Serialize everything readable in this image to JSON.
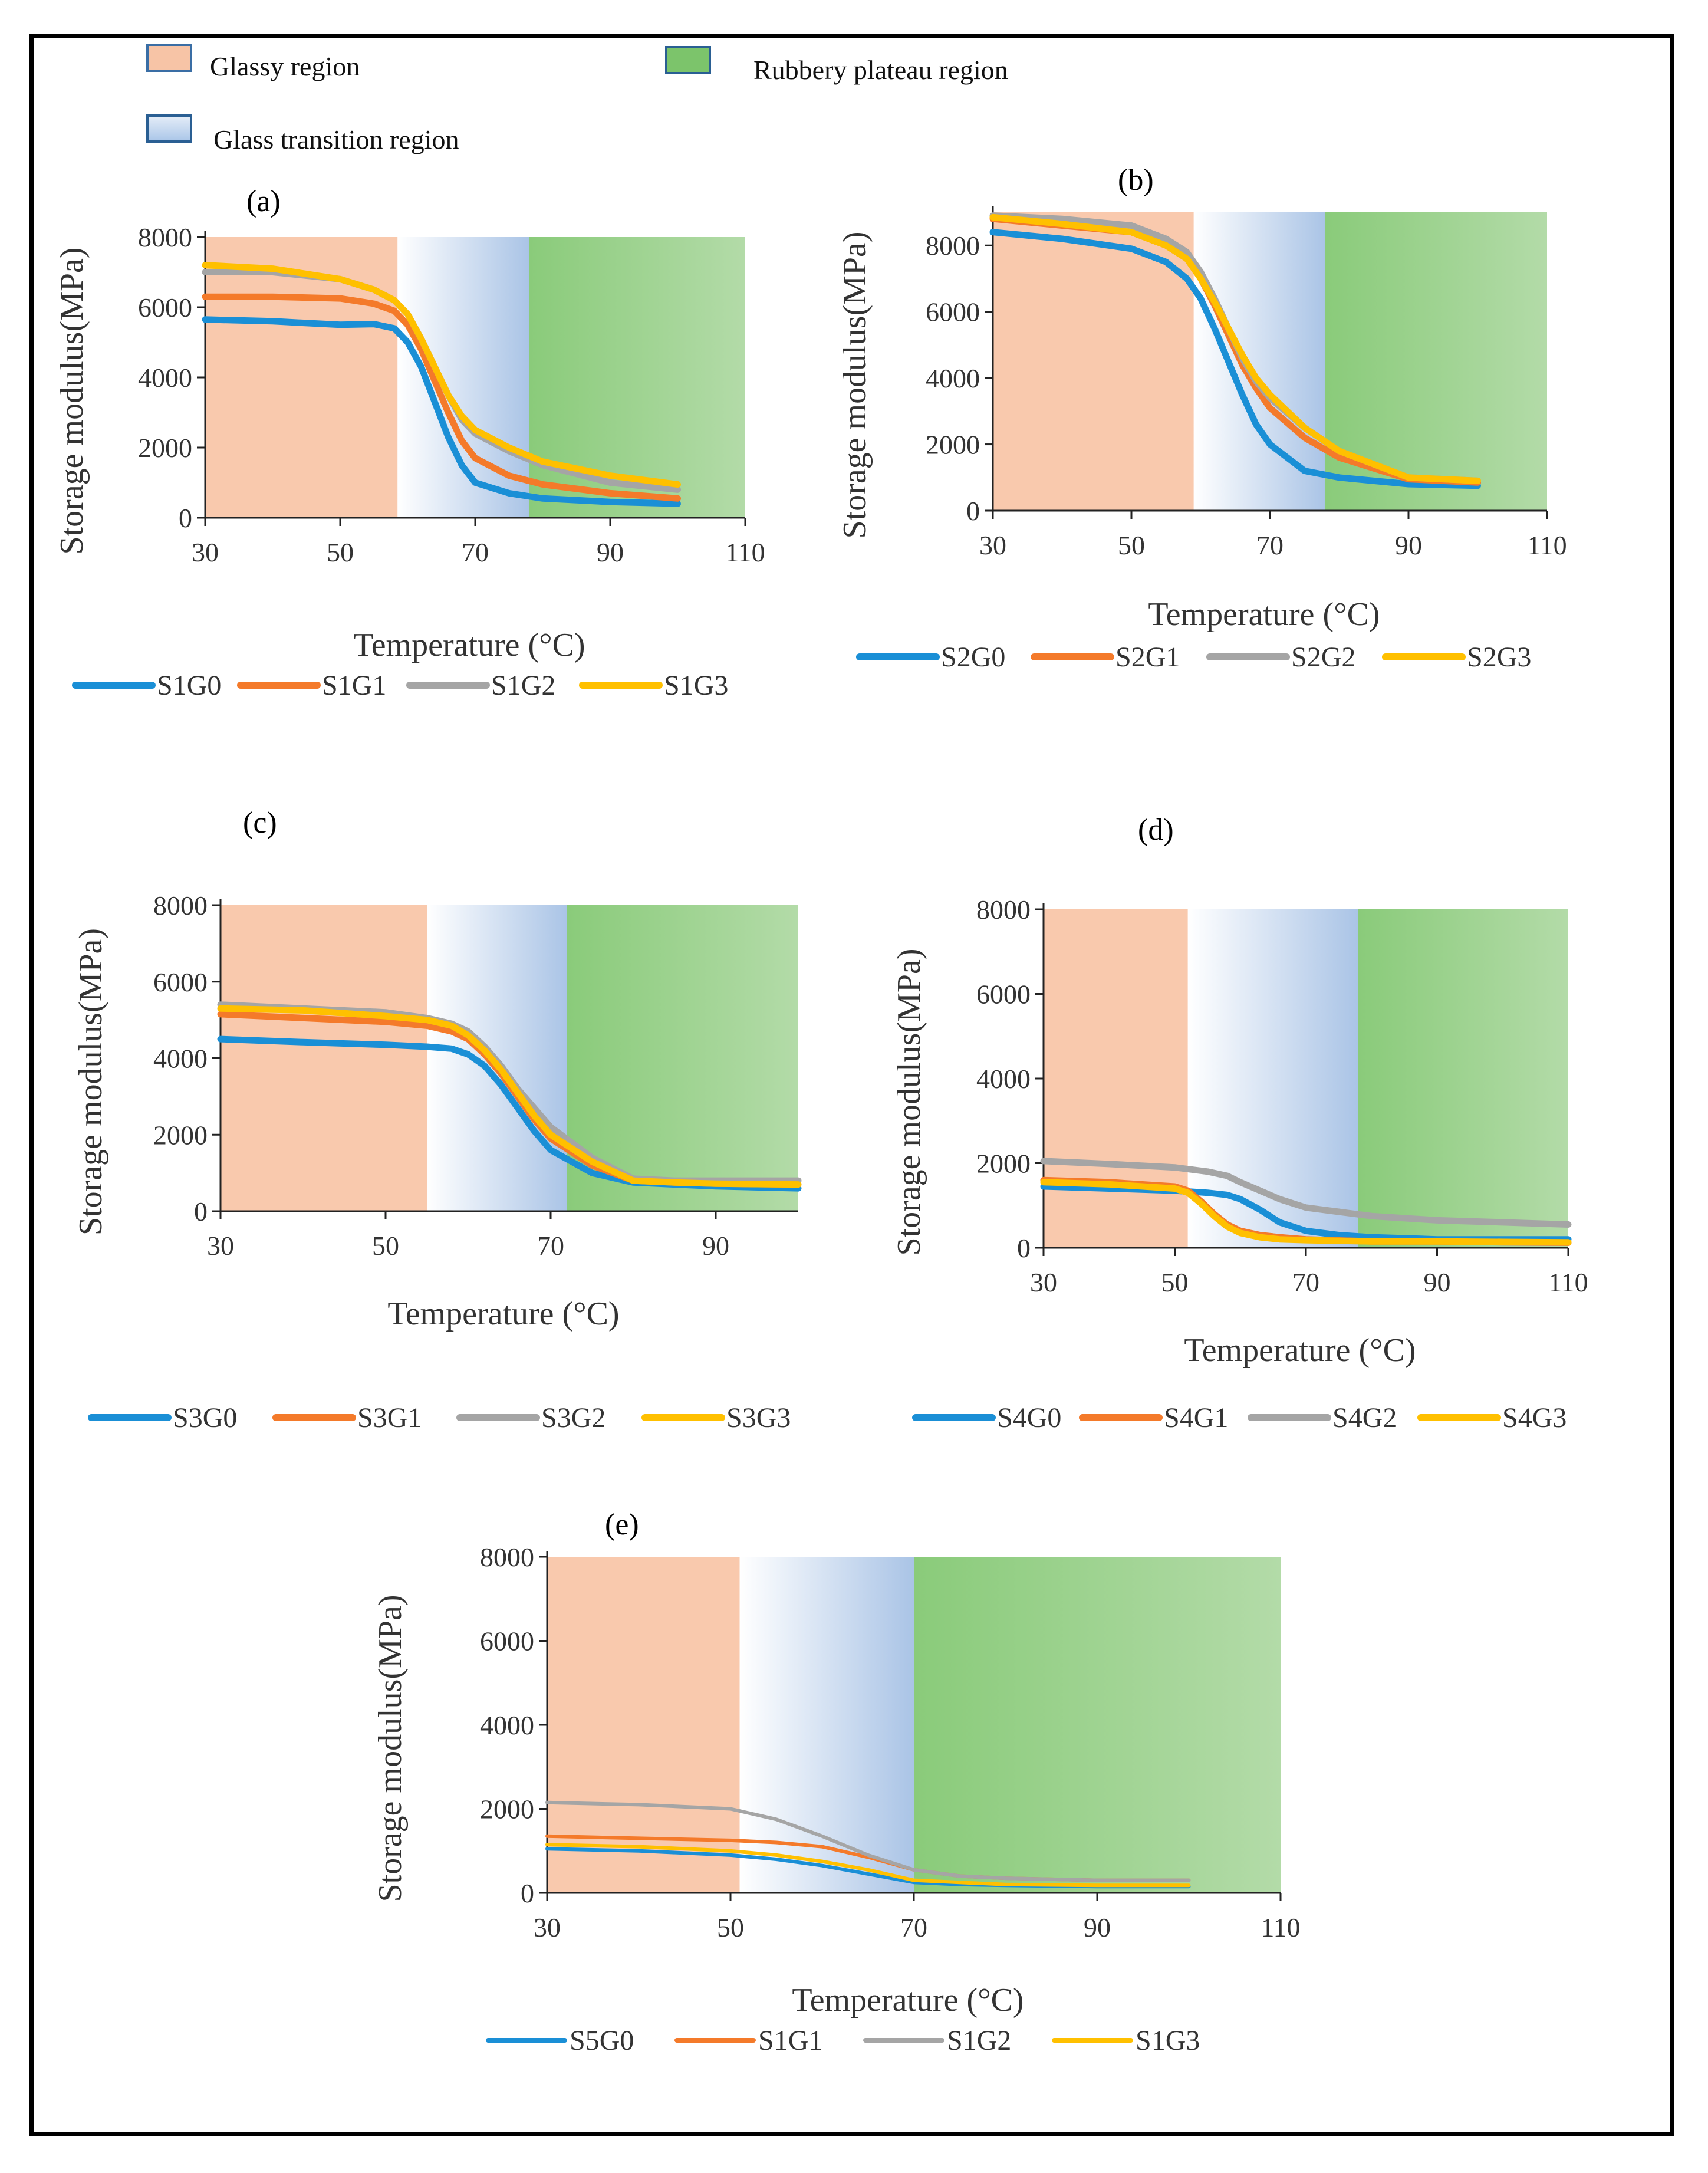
{
  "legend_regions": [
    {
      "key": "glassy",
      "label": "Glassy region",
      "color": "#f7c4a6"
    },
    {
      "key": "rubbery",
      "label": "Rubbery plateau region",
      "color": "#7cc46b"
    },
    {
      "key": "transition",
      "label": "Glass transition region",
      "color": "#b7cfea"
    }
  ],
  "colors": {
    "G0": "#1a8fd6",
    "G1": "#f47a2a",
    "G2": "#a5a5a5",
    "G3": "#ffc000"
  },
  "chart_data": [
    {
      "type": "line",
      "panel": "(a)",
      "xlabel": "Temperature (°C)",
      "ylabel": "Storage modulus(MPa)",
      "xlim": [
        30,
        110
      ],
      "ylim": [
        0,
        8000
      ],
      "xticks": [
        30,
        50,
        70,
        90,
        110
      ],
      "yticks": [
        0,
        2000,
        4000,
        6000,
        8000
      ],
      "regions": {
        "glassy": [
          30,
          58.5
        ],
        "transition": [
          58.5,
          78
        ],
        "rubbery": [
          78,
          110
        ]
      },
      "series": [
        {
          "name": "S1G0",
          "color": "#1a8fd6",
          "x": [
            30,
            40,
            50,
            55,
            58,
            60,
            62,
            64,
            66,
            68,
            70,
            75,
            80,
            90,
            100
          ],
          "values": [
            5650,
            5600,
            5500,
            5520,
            5400,
            5000,
            4300,
            3300,
            2300,
            1500,
            1000,
            700,
            550,
            450,
            400
          ]
        },
        {
          "name": "S1G1",
          "color": "#f47a2a",
          "x": [
            30,
            40,
            50,
            55,
            58,
            60,
            62,
            64,
            66,
            68,
            70,
            75,
            80,
            90,
            100
          ],
          "values": [
            6300,
            6300,
            6250,
            6100,
            5900,
            5500,
            4800,
            3900,
            3000,
            2200,
            1700,
            1200,
            950,
            700,
            550
          ]
        },
        {
          "name": "S1G2",
          "color": "#a5a5a5",
          "x": [
            30,
            40,
            50,
            55,
            58,
            60,
            62,
            64,
            66,
            68,
            70,
            75,
            80,
            90,
            100
          ],
          "values": [
            7000,
            7000,
            6800,
            6500,
            6200,
            5800,
            5100,
            4300,
            3500,
            2800,
            2400,
            1900,
            1500,
            1000,
            800
          ]
        },
        {
          "name": "S1G3",
          "color": "#ffc000",
          "x": [
            30,
            40,
            50,
            55,
            58,
            60,
            62,
            64,
            66,
            68,
            70,
            75,
            80,
            90,
            100
          ],
          "values": [
            7200,
            7100,
            6800,
            6500,
            6200,
            5800,
            5100,
            4300,
            3500,
            2900,
            2500,
            2000,
            1600,
            1200,
            950
          ]
        }
      ]
    },
    {
      "type": "line",
      "panel": "(b)",
      "xlabel": "Temperature (°C)",
      "ylabel": "Storage modulus(MPa)",
      "xlim": [
        30,
        110
      ],
      "ylim": [
        0,
        9000
      ],
      "xticks": [
        30,
        50,
        70,
        90,
        110
      ],
      "yticks": [
        0,
        2000,
        4000,
        6000,
        8000
      ],
      "regions": {
        "glassy": [
          30,
          59
        ],
        "transition": [
          59,
          78
        ],
        "rubbery": [
          78,
          110
        ]
      },
      "series": [
        {
          "name": "S2G0",
          "color": "#1a8fd6",
          "x": [
            30,
            40,
            50,
            55,
            58,
            60,
            62,
            64,
            66,
            68,
            70,
            75,
            80,
            90,
            100
          ],
          "values": [
            8400,
            8200,
            7900,
            7500,
            7000,
            6400,
            5500,
            4500,
            3500,
            2600,
            2000,
            1200,
            1000,
            800,
            750
          ]
        },
        {
          "name": "S2G1",
          "color": "#f47a2a",
          "x": [
            30,
            40,
            50,
            55,
            58,
            60,
            62,
            64,
            66,
            68,
            70,
            75,
            80,
            90,
            100
          ],
          "values": [
            8800,
            8600,
            8400,
            8000,
            7600,
            7000,
            6200,
            5300,
            4400,
            3700,
            3100,
            2200,
            1600,
            950,
            850
          ]
        },
        {
          "name": "S2G2",
          "color": "#a5a5a5",
          "x": [
            30,
            40,
            50,
            55,
            58,
            60,
            62,
            64,
            66,
            68,
            70,
            75,
            80,
            90,
            100
          ],
          "values": [
            8900,
            8800,
            8600,
            8200,
            7800,
            7200,
            6400,
            5500,
            4600,
            3900,
            3400,
            2500,
            1800,
            1000,
            900
          ]
        },
        {
          "name": "S2G3",
          "color": "#ffc000",
          "x": [
            30,
            40,
            50,
            55,
            58,
            60,
            62,
            64,
            66,
            68,
            70,
            75,
            80,
            90,
            100
          ],
          "values": [
            8850,
            8650,
            8400,
            8000,
            7600,
            7000,
            6300,
            5500,
            4700,
            4000,
            3500,
            2500,
            1800,
            1000,
            900
          ]
        }
      ]
    },
    {
      "type": "line",
      "panel": "(c)",
      "xlabel": "Temperature (°C)",
      "ylabel": "Storage modulus(MPa)",
      "xlim": [
        30,
        100
      ],
      "ylim": [
        0,
        8000
      ],
      "xticks": [
        30,
        50,
        70,
        90
      ],
      "yticks": [
        0,
        2000,
        4000,
        6000,
        8000
      ],
      "regions": {
        "glassy": [
          30,
          55
        ],
        "transition": [
          55,
          72
        ],
        "rubbery": [
          72,
          100
        ]
      },
      "series": [
        {
          "name": "S3G0",
          "color": "#1a8fd6",
          "x": [
            30,
            40,
            50,
            55,
            58,
            60,
            62,
            64,
            66,
            68,
            70,
            75,
            80,
            85,
            90,
            100
          ],
          "values": [
            4500,
            4420,
            4350,
            4300,
            4250,
            4100,
            3800,
            3300,
            2700,
            2100,
            1600,
            1000,
            750,
            700,
            650,
            600
          ]
        },
        {
          "name": "S3G1",
          "color": "#f47a2a",
          "x": [
            30,
            40,
            50,
            55,
            58,
            60,
            62,
            64,
            66,
            68,
            70,
            75,
            80,
            85,
            90,
            100
          ],
          "values": [
            5150,
            5050,
            4950,
            4850,
            4700,
            4500,
            4100,
            3600,
            3000,
            2400,
            1900,
            1200,
            800,
            750,
            720,
            700
          ]
        },
        {
          "name": "S3G2",
          "color": "#a5a5a5",
          "x": [
            30,
            40,
            50,
            55,
            58,
            60,
            62,
            64,
            66,
            68,
            70,
            75,
            80,
            85,
            90,
            100
          ],
          "values": [
            5400,
            5300,
            5200,
            5050,
            4900,
            4700,
            4300,
            3800,
            3200,
            2700,
            2200,
            1400,
            850,
            800,
            800,
            800
          ]
        },
        {
          "name": "S3G3",
          "color": "#ffc000",
          "x": [
            30,
            40,
            50,
            55,
            58,
            60,
            62,
            64,
            66,
            68,
            70,
            75,
            80,
            85,
            90,
            100
          ],
          "values": [
            5300,
            5250,
            5100,
            5000,
            4850,
            4600,
            4200,
            3700,
            3100,
            2500,
            2000,
            1300,
            800,
            750,
            720,
            700
          ]
        }
      ]
    },
    {
      "type": "line",
      "panel": "(d)",
      "xlabel": "Temperature (°C)",
      "ylabel": "Storage modulus(MPa)",
      "xlim": [
        30,
        110
      ],
      "ylim": [
        0,
        8000
      ],
      "xticks": [
        30,
        50,
        70,
        90,
        110
      ],
      "yticks": [
        0,
        2000,
        4000,
        6000,
        8000
      ],
      "regions": {
        "glassy": [
          30,
          52
        ],
        "transition": [
          52,
          78
        ],
        "rubbery": [
          78,
          110
        ]
      },
      "series": [
        {
          "name": "S4G0",
          "color": "#1a8fd6",
          "x": [
            30,
            40,
            50,
            55,
            58,
            60,
            63,
            66,
            70,
            75,
            80,
            90,
            100,
            110
          ],
          "values": [
            1450,
            1400,
            1350,
            1300,
            1250,
            1150,
            900,
            600,
            400,
            300,
            250,
            200,
            200,
            200
          ]
        },
        {
          "name": "S4G1",
          "color": "#f47a2a",
          "x": [
            30,
            40,
            50,
            52,
            54,
            56,
            58,
            60,
            63,
            66,
            70,
            80,
            90,
            100,
            110
          ],
          "values": [
            1600,
            1550,
            1450,
            1350,
            1100,
            800,
            550,
            400,
            300,
            250,
            200,
            150,
            150,
            130,
            120
          ]
        },
        {
          "name": "S4G2",
          "color": "#a5a5a5",
          "x": [
            30,
            40,
            50,
            55,
            58,
            60,
            63,
            66,
            70,
            75,
            80,
            90,
            100,
            110
          ],
          "values": [
            2050,
            1980,
            1900,
            1800,
            1700,
            1550,
            1350,
            1150,
            950,
            850,
            750,
            650,
            600,
            550
          ]
        },
        {
          "name": "S4G3",
          "color": "#ffc000",
          "x": [
            30,
            40,
            50,
            52,
            54,
            56,
            58,
            60,
            63,
            66,
            70,
            80,
            90,
            100,
            110
          ],
          "values": [
            1550,
            1500,
            1400,
            1300,
            1050,
            750,
            500,
            350,
            250,
            200,
            180,
            150,
            150,
            140,
            130
          ]
        }
      ]
    },
    {
      "type": "line",
      "panel": "(e)",
      "xlabel": "Temperature (°C)",
      "ylabel": "Storage modulus(MPa)",
      "xlim": [
        30,
        110
      ],
      "ylim": [
        0,
        8000
      ],
      "xticks": [
        30,
        50,
        70,
        90,
        110
      ],
      "yticks": [
        0,
        2000,
        4000,
        6000,
        8000
      ],
      "regions": {
        "glassy": [
          30,
          51
        ],
        "transition": [
          51,
          70
        ],
        "rubbery": [
          70,
          110
        ]
      },
      "series": [
        {
          "name": "S5G0",
          "color": "#1a8fd6",
          "x": [
            30,
            40,
            50,
            55,
            60,
            65,
            70,
            75,
            80,
            90,
            100
          ],
          "values": [
            1050,
            1000,
            900,
            800,
            650,
            450,
            250,
            200,
            180,
            150,
            150
          ]
        },
        {
          "name": "S1G1",
          "color": "#f47a2a",
          "x": [
            30,
            40,
            50,
            55,
            60,
            65,
            70,
            75,
            80,
            90,
            100
          ],
          "values": [
            1350,
            1300,
            1250,
            1200,
            1100,
            850,
            550,
            400,
            350,
            300,
            300
          ]
        },
        {
          "name": "S1G2",
          "color": "#a5a5a5",
          "x": [
            30,
            40,
            50,
            55,
            60,
            65,
            70,
            75,
            80,
            90,
            100
          ],
          "values": [
            2150,
            2100,
            2000,
            1750,
            1350,
            900,
            550,
            400,
            350,
            300,
            300
          ]
        },
        {
          "name": "S1G3",
          "color": "#ffc000",
          "x": [
            30,
            40,
            50,
            55,
            60,
            65,
            70,
            75,
            80,
            90,
            100
          ],
          "values": [
            1150,
            1100,
            1000,
            900,
            750,
            550,
            300,
            250,
            200,
            180,
            180
          ]
        }
      ]
    }
  ]
}
